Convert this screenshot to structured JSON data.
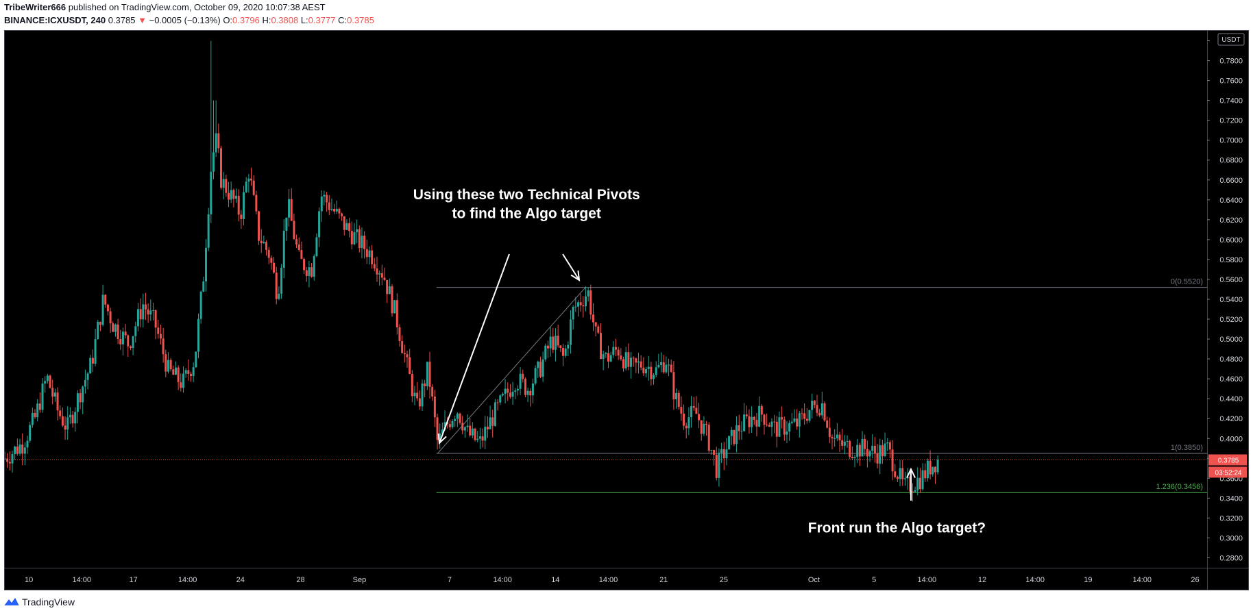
{
  "header": {
    "author": "TribeWriter666",
    "published_text": "published on TradingView.com, October 09, 2020 10:07:38 AEST",
    "symbol": "BINANCE:ICXUSDT, 240",
    "last": "0.3785",
    "change": "−0.0005 (−0.13%)",
    "open_label": "O:",
    "open": "0.3796",
    "high_label": "H:",
    "high": "0.3808",
    "low_label": "L:",
    "low": "0.3777",
    "close_label": "C:",
    "close": "0.3785"
  },
  "footer": {
    "brand": "TradingView",
    "logo_icon": "tradingview-logo-icon"
  },
  "colors": {
    "up": "#26a69a",
    "down": "#ef5350",
    "background": "#000000",
    "fib_line": "#787b86",
    "fib_ext": "#4caf50",
    "price_badge": "#ef5350"
  },
  "chart_data": {
    "type": "candlestick",
    "currency_label": "USDT",
    "ylim": [
      0.27,
      0.81
    ],
    "xlim": [
      0,
      100
    ],
    "y_ticks": [
      "0.2800",
      "0.3000",
      "0.3200",
      "0.3400",
      "0.3600",
      "0.3800",
      "0.4000",
      "0.4200",
      "0.4400",
      "0.4600",
      "0.4800",
      "0.5000",
      "0.5200",
      "0.5400",
      "0.5600",
      "0.5800",
      "0.6000",
      "0.6200",
      "0.6400",
      "0.6600",
      "0.6800",
      "0.7000",
      "0.7200",
      "0.7400",
      "0.7600",
      "0.7800",
      "0.8000"
    ],
    "x_ticks": [
      {
        "label": "10",
        "x": 2
      },
      {
        "label": "14:00",
        "x": 6.4
      },
      {
        "label": "17",
        "x": 10.7
      },
      {
        "label": "14:00",
        "x": 15.2
      },
      {
        "label": "24",
        "x": 19.6
      },
      {
        "label": "28",
        "x": 24.6
      },
      {
        "label": "Sep",
        "x": 29.5
      },
      {
        "label": "7",
        "x": 37
      },
      {
        "label": "14:00",
        "x": 41.4
      },
      {
        "label": "14",
        "x": 45.8
      },
      {
        "label": "14:00",
        "x": 50.2
      },
      {
        "label": "21",
        "x": 54.8
      },
      {
        "label": "25",
        "x": 59.8
      },
      {
        "label": "Oct",
        "x": 67.3
      },
      {
        "label": "5",
        "x": 72.3
      },
      {
        "label": "14:00",
        "x": 76.7
      },
      {
        "label": "12",
        "x": 81.3
      },
      {
        "label": "14:00",
        "x": 85.7
      },
      {
        "label": "19",
        "x": 90.1
      },
      {
        "label": "14:00",
        "x": 94.6
      },
      {
        "label": "26",
        "x": 99
      }
    ],
    "last_price": {
      "value": 0.3785,
      "label": "0.3785",
      "countdown": "03:52:24"
    },
    "fib_levels": [
      {
        "label": "0(0.5520)",
        "price": 0.552,
        "x_start": 35.9
      },
      {
        "label": "1(0.3850)",
        "price": 0.385,
        "x_start": 35.9
      },
      {
        "label": "1.236(0.3456)",
        "price": 0.3456,
        "x_start": 35.9
      }
    ],
    "fib_trend": {
      "from": {
        "x": 36.0,
        "price": 0.385
      },
      "to": {
        "x": 48.3,
        "price": 0.552
      }
    },
    "price_path": [
      [
        0,
        0.38
      ],
      [
        1.5,
        0.395
      ],
      [
        2.5,
        0.42
      ],
      [
        3.5,
        0.462
      ],
      [
        4.4,
        0.428
      ],
      [
        5.2,
        0.41
      ],
      [
        6.2,
        0.445
      ],
      [
        7.2,
        0.475
      ],
      [
        8.2,
        0.54
      ],
      [
        9.0,
        0.515
      ],
      [
        10.3,
        0.495
      ],
      [
        11.5,
        0.535
      ],
      [
        12.5,
        0.515
      ],
      [
        13.6,
        0.468
      ],
      [
        14.8,
        0.455
      ],
      [
        15.8,
        0.48
      ],
      [
        16.5,
        0.56
      ],
      [
        17.2,
        0.68
      ],
      [
        17.6,
        0.7
      ],
      [
        18.0,
        0.66
      ],
      [
        19.0,
        0.64
      ],
      [
        19.6,
        0.625
      ],
      [
        20.3,
        0.67
      ],
      [
        21.1,
        0.605
      ],
      [
        22.0,
        0.585
      ],
      [
        22.7,
        0.545
      ],
      [
        23.5,
        0.638
      ],
      [
        24.5,
        0.578
      ],
      [
        25.5,
        0.57
      ],
      [
        26.3,
        0.645
      ],
      [
        27.0,
        0.635
      ],
      [
        28.2,
        0.615
      ],
      [
        29.3,
        0.6
      ],
      [
        30.5,
        0.585
      ],
      [
        31.5,
        0.565
      ],
      [
        32.5,
        0.525
      ],
      [
        33.5,
        0.47
      ],
      [
        34.3,
        0.43
      ],
      [
        35.2,
        0.47
      ],
      [
        36.0,
        0.395
      ],
      [
        36.8,
        0.415
      ],
      [
        37.6,
        0.43
      ],
      [
        38.5,
        0.405
      ],
      [
        39.5,
        0.395
      ],
      [
        40.5,
        0.42
      ],
      [
        41.5,
        0.44
      ],
      [
        42.5,
        0.46
      ],
      [
        43.5,
        0.45
      ],
      [
        44.5,
        0.47
      ],
      [
        45.5,
        0.5
      ],
      [
        46.5,
        0.48
      ],
      [
        47.3,
        0.53
      ],
      [
        48.0,
        0.54
      ],
      [
        48.5,
        0.548
      ],
      [
        49.2,
        0.5
      ],
      [
        50.0,
        0.48
      ],
      [
        51.0,
        0.49
      ],
      [
        52.0,
        0.47
      ],
      [
        53.0,
        0.475
      ],
      [
        54.2,
        0.468
      ],
      [
        55.0,
        0.48
      ],
      [
        55.8,
        0.44
      ],
      [
        56.5,
        0.42
      ],
      [
        57.5,
        0.425
      ],
      [
        58.5,
        0.4
      ],
      [
        59.2,
        0.37
      ],
      [
        60.0,
        0.39
      ],
      [
        61.0,
        0.41
      ],
      [
        62.0,
        0.42
      ],
      [
        63.0,
        0.425
      ],
      [
        64.0,
        0.41
      ],
      [
        65.0,
        0.412
      ],
      [
        66.0,
        0.415
      ],
      [
        67.0,
        0.43
      ],
      [
        68.0,
        0.435
      ],
      [
        68.8,
        0.4
      ],
      [
        69.7,
        0.393
      ],
      [
        70.5,
        0.39
      ],
      [
        71.5,
        0.39
      ],
      [
        72.5,
        0.385
      ],
      [
        73.4,
        0.39
      ],
      [
        74.2,
        0.367
      ],
      [
        74.8,
        0.35
      ],
      [
        75.5,
        0.355
      ],
      [
        76.2,
        0.36
      ],
      [
        77.0,
        0.372
      ],
      [
        77.6,
        0.3785
      ]
    ],
    "annotations": [
      {
        "text": "Using these two Technical Pivots",
        "x": 43.4,
        "price": 0.6405
      },
      {
        "text": "to find the Algo target",
        "x": 43.4,
        "price": 0.6215
      },
      {
        "text": "Front run the Algo target?",
        "x": 74.2,
        "price": 0.3055
      }
    ]
  }
}
